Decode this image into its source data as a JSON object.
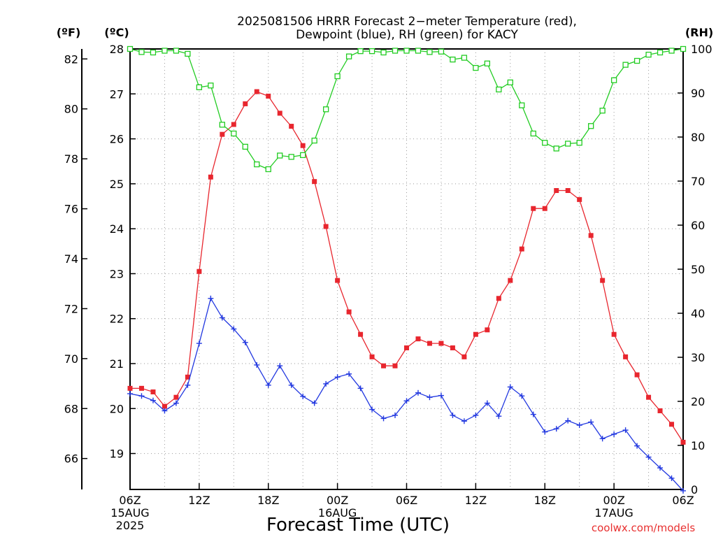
{
  "title_line1": "2025081506 HRRR Forecast 2−meter Temperature (red),",
  "title_line2": "Dewpoint (blue), RH (green) for KACY",
  "unit_f": "(ºF)",
  "unit_c": "(ºC)",
  "unit_rh": "(RH)",
  "xlabel": "Forecast Time (UTC)",
  "credit": "coolwx.com/models",
  "colors": {
    "temp": "#e8262e",
    "dewpoint": "#2238e0",
    "rh": "#22cc22",
    "credit": "#e83030",
    "grid": "#999999"
  },
  "chart_data": {
    "type": "line",
    "x_unit": "forecast hour from 2025-08-15 06Z",
    "x": [
      0,
      1,
      2,
      3,
      4,
      5,
      6,
      7,
      8,
      9,
      10,
      11,
      12,
      13,
      14,
      15,
      16,
      17,
      18,
      19,
      20,
      21,
      22,
      23,
      24,
      25,
      26,
      27,
      28,
      29,
      30,
      31,
      32,
      33,
      34,
      35,
      36,
      37,
      38,
      39,
      40,
      41,
      42,
      43,
      44,
      45,
      46,
      47,
      48
    ],
    "xlim": [
      0,
      48
    ],
    "x_tick_labels": [
      {
        "x": 0,
        "lines": [
          "06Z",
          "15AUG",
          "2025"
        ]
      },
      {
        "x": 6,
        "lines": [
          "12Z"
        ]
      },
      {
        "x": 12,
        "lines": [
          "18Z"
        ]
      },
      {
        "x": 18,
        "lines": [
          "00Z",
          "16AUG"
        ]
      },
      {
        "x": 24,
        "lines": [
          "06Z"
        ]
      },
      {
        "x": 30,
        "lines": [
          "12Z"
        ]
      },
      {
        "x": 36,
        "lines": [
          "18Z"
        ]
      },
      {
        "x": 42,
        "lines": [
          "00Z",
          "17AUG"
        ]
      },
      {
        "x": 48,
        "lines": [
          "06Z"
        ]
      }
    ],
    "y_left_celsius": {
      "label": "(ºC)",
      "lim": [
        18.2,
        28.0
      ],
      "ticks": [
        19,
        20,
        21,
        22,
        23,
        24,
        25,
        26,
        27,
        28
      ]
    },
    "y_left_fahrenheit": {
      "label": "(ºF)",
      "ticks": [
        66,
        68,
        70,
        72,
        74,
        76,
        78,
        80,
        82
      ]
    },
    "y_right_rh": {
      "label": "(RH)",
      "lim": [
        0,
        100
      ],
      "ticks": [
        0,
        10,
        20,
        30,
        40,
        50,
        60,
        70,
        80,
        90,
        100
      ]
    },
    "grid": true,
    "series": [
      {
        "name": "Temperature (red)",
        "axis": "celsius",
        "marker": "filled-square",
        "values": [
          20.45,
          20.45,
          20.37,
          20.05,
          20.25,
          20.7,
          23.05,
          25.15,
          26.1,
          26.32,
          26.78,
          27.05,
          26.95,
          26.57,
          26.28,
          25.85,
          25.05,
          24.05,
          22.85,
          22.15,
          21.65,
          21.15,
          20.95,
          20.95,
          21.35,
          21.55,
          21.45,
          21.45,
          21.35,
          21.15,
          21.65,
          21.75,
          22.45,
          22.85,
          23.55,
          24.45,
          24.45,
          24.85,
          24.85,
          24.65,
          23.85,
          22.85,
          21.65,
          21.15,
          20.75,
          20.25,
          19.95,
          19.65,
          19.25
        ]
      },
      {
        "name": "Dewpoint (blue)",
        "axis": "celsius",
        "marker": "plus",
        "values": [
          20.33,
          20.28,
          20.18,
          19.95,
          20.12,
          20.52,
          21.45,
          22.45,
          22.02,
          21.77,
          21.47,
          20.97,
          20.52,
          20.95,
          20.52,
          20.27,
          20.12,
          20.55,
          20.7,
          20.77,
          20.45,
          19.98,
          19.78,
          19.85,
          20.17,
          20.35,
          20.25,
          20.29,
          19.85,
          19.72,
          19.85,
          20.12,
          19.83,
          20.48,
          20.28,
          19.87,
          19.48,
          19.55,
          19.73,
          19.63,
          19.7,
          19.33,
          19.43,
          19.52,
          19.17,
          18.92,
          18.68,
          18.45,
          18.17
        ]
      },
      {
        "name": "RH (green)",
        "axis": "rh",
        "marker": "open-square",
        "values": [
          100,
          99.3,
          99.2,
          99.6,
          99.6,
          98.9,
          91.3,
          91.7,
          82.8,
          80.8,
          77.8,
          73.8,
          72.7,
          75.8,
          75.5,
          75.9,
          79.2,
          86.3,
          93.8,
          98.3,
          99.5,
          99.5,
          99.2,
          99.6,
          99.6,
          99.6,
          99.3,
          99.4,
          97.6,
          98,
          95.7,
          96.7,
          90.8,
          92.4,
          87.2,
          80.8,
          78.7,
          77.4,
          78.5,
          78.7,
          82.5,
          86,
          92.9,
          96.4,
          97.3,
          98.7,
          99.2,
          99.6,
          100
        ]
      }
    ]
  }
}
